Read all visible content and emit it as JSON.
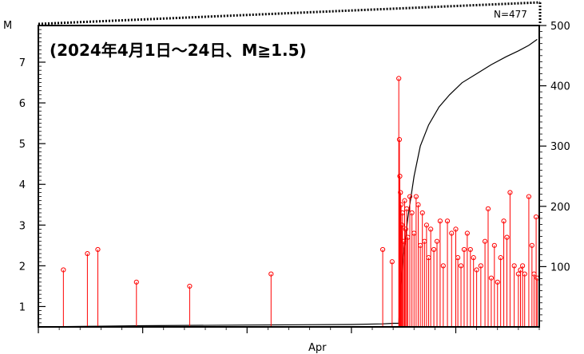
{
  "chart_data": {
    "type": "scatter",
    "title": "(2024年4月1日～24日、M≧1.5)",
    "count_label": "N=477",
    "ylabel_left": "M",
    "xlabel": "Apr",
    "ylim_left": [
      0.5,
      7.9
    ],
    "yticks_left": [
      1,
      2,
      3,
      4,
      5,
      6,
      7
    ],
    "ylim_right": [
      0,
      500
    ],
    "yticks_right": [
      100,
      200,
      300,
      400,
      500
    ],
    "xlim": [
      0,
      24
    ],
    "colors": {
      "events": "#ff0000",
      "cumulative": "#000000",
      "frame": "#000000"
    },
    "series": [
      {
        "type": "stem",
        "x": [
          1.2,
          2.35,
          2.85,
          4.7,
          7.25,
          11.15,
          16.5,
          16.95,
          17.27,
          17.3,
          17.32,
          17.35,
          17.38,
          17.42,
          17.45,
          17.5,
          17.55,
          17.6,
          17.65,
          17.7,
          17.8,
          17.9,
          18.0,
          18.1,
          18.2,
          18.3,
          18.4,
          18.5,
          18.6,
          18.7,
          18.8,
          18.95,
          19.1,
          19.25,
          19.4,
          19.6,
          19.8,
          20.0,
          20.1,
          20.25,
          20.4,
          20.55,
          20.7,
          20.85,
          21.0,
          21.2,
          21.4,
          21.55,
          21.7,
          21.85,
          22.0,
          22.15,
          22.3,
          22.45,
          22.6,
          22.8,
          23.0,
          23.1,
          23.2,
          23.3,
          23.5,
          23.65,
          23.75,
          23.85,
          23.9
        ],
        "y": [
          1.9,
          2.3,
          2.4,
          1.6,
          1.5,
          1.8,
          2.4,
          2.1,
          6.6,
          5.1,
          4.2,
          3.8,
          3.5,
          3.0,
          3.3,
          2.6,
          3.6,
          2.9,
          3.4,
          2.7,
          3.7,
          3.3,
          2.8,
          3.7,
          3.5,
          2.5,
          3.3,
          2.6,
          3.0,
          2.2,
          2.9,
          2.4,
          2.6,
          3.1,
          2.0,
          3.1,
          2.8,
          2.9,
          2.2,
          2.0,
          2.4,
          2.8,
          2.4,
          2.2,
          1.9,
          2.0,
          2.6,
          3.4,
          1.7,
          2.5,
          1.6,
          2.2,
          3.1,
          2.7,
          3.8,
          2.0,
          1.8,
          1.9,
          2.0,
          1.8,
          3.7,
          2.5,
          1.8,
          3.2,
          1.7
        ]
      },
      {
        "type": "line",
        "name": "cumulative",
        "axis": "right",
        "x": [
          0,
          2.5,
          5,
          10,
          15,
          16.5,
          17.0,
          17.27,
          17.35,
          17.5,
          17.7,
          18.0,
          18.3,
          18.7,
          19.2,
          19.7,
          20.3,
          21.0,
          21.7,
          22.4,
          23.0,
          23.5,
          23.9
        ],
        "y": [
          0,
          1,
          2,
          3,
          4,
          5,
          6,
          6,
          60,
          120,
          180,
          250,
          300,
          335,
          365,
          385,
          405,
          420,
          435,
          448,
          458,
          467,
          477
        ]
      }
    ]
  }
}
